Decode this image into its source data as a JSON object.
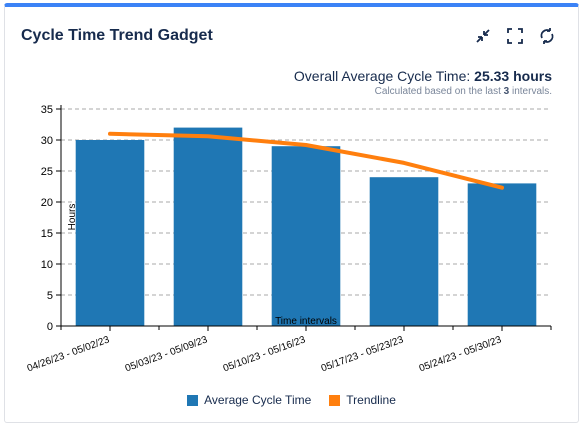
{
  "gadget": {
    "title": "Cycle Time Trend Gadget",
    "icons": [
      "collapse-icon",
      "fullscreen-icon",
      "refresh-icon"
    ]
  },
  "summary": {
    "label": "Overall Average Cycle Time:",
    "value": "25.33 hours",
    "sub_prefix": "Calculated based on the last",
    "sub_count": "3",
    "sub_suffix": "intervals."
  },
  "colors": {
    "bar": "#1f77b4",
    "trend": "#ff7f0e",
    "accent": "#3b82f6"
  },
  "chart_data": {
    "type": "bar",
    "categories": [
      "04/26/23 - 05/02/23",
      "05/03/23 - 05/09/23",
      "05/10/23 - 05/16/23",
      "05/17/23 - 05/23/23",
      "05/24/23 - 05/30/23"
    ],
    "series": [
      {
        "name": "Average Cycle Time",
        "values": [
          30,
          32,
          29,
          24,
          23
        ]
      },
      {
        "name": "Trendline",
        "values": [
          31,
          30.6,
          29.2,
          26.3,
          22.3
        ]
      }
    ],
    "xlabel": "Time intervals",
    "ylabel": "Hours",
    "ylim": [
      0,
      35
    ],
    "yticks": [
      0,
      5,
      10,
      15,
      20,
      25,
      30,
      35
    ],
    "grid": true,
    "legend": "bottom"
  }
}
